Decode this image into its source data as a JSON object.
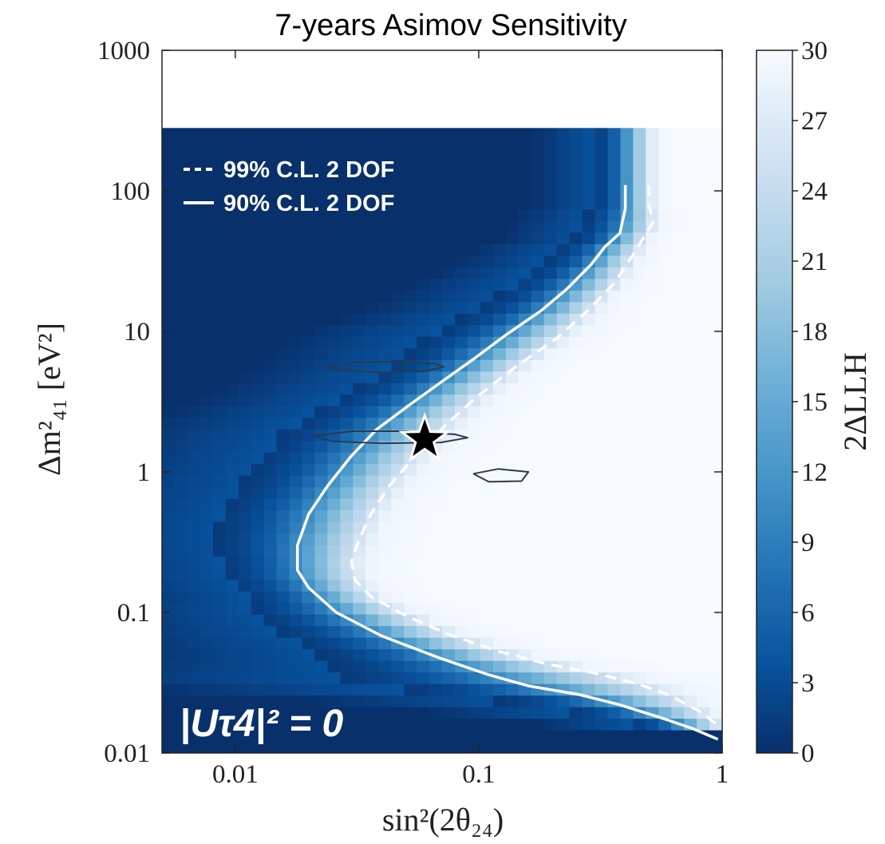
{
  "chart_data": {
    "type": "heatmap",
    "title": "7-years Asimov Sensitivity",
    "xlabel": "sin²(2θ₂₄)",
    "ylabel": "Δm²₄₁ [eV²]",
    "x_scale": "log",
    "y_scale": "log",
    "xlim": [
      0.005,
      1
    ],
    "ylim": [
      0.01,
      1000
    ],
    "x_tick_labels": [
      "0.01",
      "0.1",
      "1"
    ],
    "x_ticks": [
      0.01,
      0.1,
      1
    ],
    "y_tick_labels": [
      "0.01",
      "0.1",
      "1",
      "10",
      "100",
      "1000"
    ],
    "y_ticks": [
      0.01,
      0.1,
      1,
      10,
      100,
      1000
    ],
    "z_label": "2ΔLLH",
    "z_range": [
      0,
      30
    ],
    "colorbar_ticks": [
      "0",
      "3",
      "6",
      "9",
      "12",
      "15",
      "18",
      "21",
      "24",
      "27",
      "30"
    ],
    "colormap": [
      "#08306b",
      "#08519c",
      "#2171b5",
      "#4292c6",
      "#6baed6",
      "#9ecae1",
      "#c6dbef",
      "#f0f6fd",
      "#f7fbff"
    ],
    "legend": [
      {
        "label": "99% C.L. 2 DOF",
        "style": "dashed"
      },
      {
        "label": "90% C.L. 2 DOF",
        "style": "solid"
      }
    ],
    "legend_position": "top-left",
    "annotation": "|Uτ4|² = 0",
    "best_fit_star": {
      "x": 0.06,
      "y": 1.7
    },
    "series": [
      {
        "name": "90% C.L. 2 DOF",
        "style": "solid",
        "color": "#ffffff",
        "points": [
          [
            0.4,
            110
          ],
          [
            0.4,
            75
          ],
          [
            0.38,
            50
          ],
          [
            0.33,
            40
          ],
          [
            0.29,
            30
          ],
          [
            0.23,
            20
          ],
          [
            0.18,
            14
          ],
          [
            0.13,
            9.5
          ],
          [
            0.097,
            6.5
          ],
          [
            0.072,
            4.5
          ],
          [
            0.052,
            3
          ],
          [
            0.038,
            2
          ],
          [
            0.03,
            1.3
          ],
          [
            0.024,
            0.8
          ],
          [
            0.02,
            0.5
          ],
          [
            0.018,
            0.3
          ],
          [
            0.018,
            0.2
          ],
          [
            0.02,
            0.15
          ],
          [
            0.026,
            0.1
          ],
          [
            0.04,
            0.068
          ],
          [
            0.07,
            0.047
          ],
          [
            0.11,
            0.036
          ],
          [
            0.16,
            0.03
          ],
          [
            0.26,
            0.026
          ],
          [
            0.38,
            0.022
          ],
          [
            0.55,
            0.018
          ],
          [
            0.75,
            0.015
          ],
          [
            0.96,
            0.0125
          ]
        ]
      },
      {
        "name": "99% C.L. 2 DOF",
        "style": "dashed",
        "color": "#ffffff",
        "points": [
          [
            0.5,
            110
          ],
          [
            0.5,
            80
          ],
          [
            0.52,
            60
          ],
          [
            0.47,
            45
          ],
          [
            0.43,
            35
          ],
          [
            0.36,
            22
          ],
          [
            0.28,
            14
          ],
          [
            0.21,
            9
          ],
          [
            0.14,
            5.5
          ],
          [
            0.1,
            3.5
          ],
          [
            0.074,
            2.2
          ],
          [
            0.055,
            1.3
          ],
          [
            0.043,
            0.8
          ],
          [
            0.036,
            0.5
          ],
          [
            0.032,
            0.32
          ],
          [
            0.03,
            0.23
          ],
          [
            0.031,
            0.17
          ],
          [
            0.036,
            0.13
          ],
          [
            0.05,
            0.095
          ],
          [
            0.075,
            0.07
          ],
          [
            0.12,
            0.053
          ],
          [
            0.19,
            0.043
          ],
          [
            0.3,
            0.037
          ],
          [
            0.45,
            0.031
          ],
          [
            0.6,
            0.026
          ],
          [
            0.8,
            0.02
          ],
          [
            0.95,
            0.016
          ]
        ]
      },
      {
        "name": "",
        "style": "thin-dark",
        "color": "#2a3a50",
        "points": [
          [
            0.024,
            5.6
          ],
          [
            0.03,
            6.0
          ],
          [
            0.045,
            6.1
          ],
          [
            0.065,
            5.9
          ],
          [
            0.072,
            5.6
          ],
          [
            0.06,
            5.2
          ],
          [
            0.04,
            5.1
          ],
          [
            0.026,
            5.3
          ],
          [
            0.024,
            5.6
          ]
        ]
      },
      {
        "name": "",
        "style": "thin-dark",
        "color": "#2a3a50",
        "points": [
          [
            0.021,
            1.8
          ],
          [
            0.03,
            1.95
          ],
          [
            0.05,
            1.95
          ],
          [
            0.08,
            1.85
          ],
          [
            0.09,
            1.75
          ],
          [
            0.07,
            1.62
          ],
          [
            0.04,
            1.6
          ],
          [
            0.025,
            1.65
          ],
          [
            0.021,
            1.8
          ]
        ]
      },
      {
        "name": "",
        "style": "thin-dark",
        "color": "#2a3a50",
        "points": [
          [
            0.095,
            0.97
          ],
          [
            0.12,
            1.05
          ],
          [
            0.16,
            1.0
          ],
          [
            0.15,
            0.86
          ],
          [
            0.11,
            0.85
          ],
          [
            0.095,
            0.97
          ]
        ]
      }
    ]
  }
}
